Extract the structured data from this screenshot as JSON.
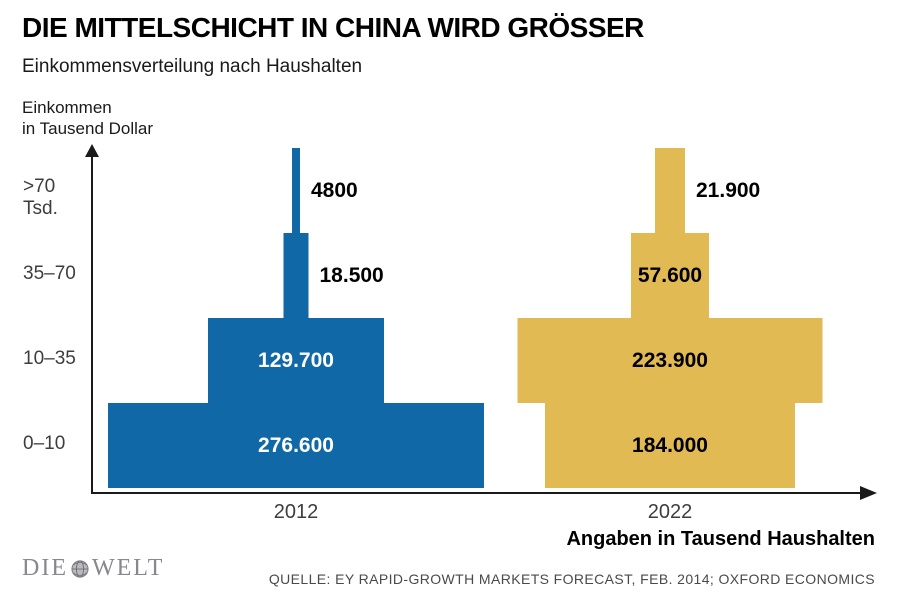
{
  "header": {
    "title": "DIE MITTELSCHICHT IN CHINA WIRD GRÖSSER",
    "subtitle": "Einkommensverteilung nach Haushalten"
  },
  "chart_data": {
    "type": "bar",
    "variant": "stepped population-pyramid comparison, bar width proportional to value",
    "title": "DIE MITTELSCHICHT IN CHINA WIRD GRÖSSER",
    "subtitle": "Einkommensverteilung nach Haushalten",
    "ylabel": "Einkommen\nin Tausend Dollar",
    "xlabel": "Angaben in Tausend Haushalten",
    "categories": [
      ">70\nTsd.",
      "35–70",
      "10–35",
      "0–10"
    ],
    "x_tick_labels": [
      "2012",
      "2022"
    ],
    "series": [
      {
        "name": "2012",
        "color": "#1168A6",
        "values": [
          4800,
          18500,
          129700,
          276600
        ],
        "labels": [
          "4800",
          "18.500",
          "129.700",
          "276.600"
        ],
        "label_colors": [
          "#000000",
          "#000000",
          "#ffffff",
          "#ffffff"
        ],
        "label_positions": [
          "right",
          "right",
          "inside",
          "inside"
        ]
      },
      {
        "name": "2022",
        "color": "#E1BA54",
        "values": [
          21900,
          57600,
          223900,
          184000
        ],
        "labels": [
          "21.900",
          "57.600",
          "223.900",
          "184.000"
        ],
        "label_colors": [
          "#000000",
          "#000000",
          "#000000",
          "#000000"
        ],
        "label_positions": [
          "right",
          "inside",
          "inside",
          "inside"
        ]
      }
    ],
    "grid": false,
    "legend": "none",
    "axis_arrows": true
  },
  "footer": {
    "logo_left": "DIE",
    "logo_right": "WELT",
    "source": "QUELLE: EY RAPID-GROWTH MARKETS FORECAST, FEB. 2014; OXFORD ECONOMICS"
  }
}
